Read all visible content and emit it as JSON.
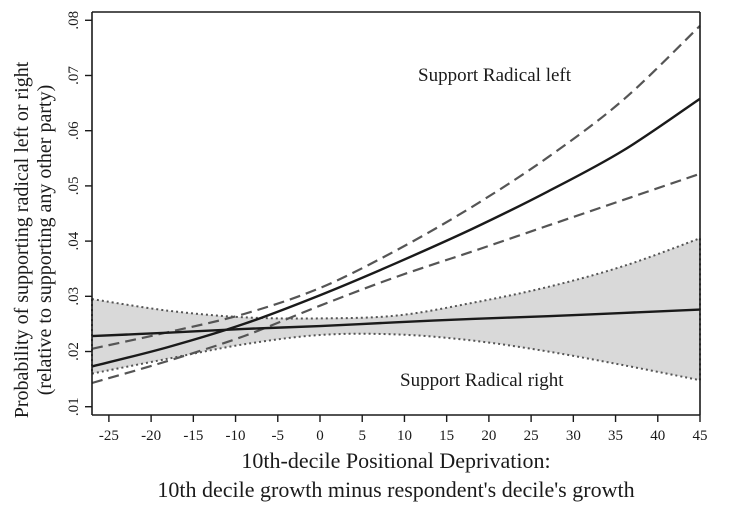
{
  "chart_data": {
    "type": "line",
    "xlabel_lines": [
      "10th-decile Positional Deprivation:",
      "10th decile growth minus respondent's decile's growth"
    ],
    "ylabel_lines": [
      "Probability of supporting radical left or right",
      "(relative to supporting any other party)"
    ],
    "xlim": [
      -27,
      45
    ],
    "ylim": [
      0.0085,
      0.0815
    ],
    "xticks": [
      -25,
      -20,
      -15,
      -10,
      -5,
      0,
      5,
      10,
      15,
      20,
      25,
      30,
      35,
      40,
      45
    ],
    "xtick_labels": [
      "-25",
      "-20",
      "-15",
      "-10",
      "-5",
      "0",
      "5",
      "10",
      "15",
      "20",
      "25",
      "30",
      "35",
      "40",
      "45"
    ],
    "yticks": [
      0.01,
      0.02,
      0.03,
      0.04,
      0.05,
      0.06,
      0.07,
      0.08
    ],
    "ytick_labels": [
      ".01",
      ".02",
      ".03",
      ".04",
      ".05",
      ".06",
      ".07",
      ".08"
    ],
    "grid": false,
    "x": [
      -27,
      -18,
      -9,
      0,
      9,
      18,
      27,
      36,
      45
    ],
    "series": [
      {
        "name": "Support Radical left",
        "style": "solid",
        "values": [
          0.0173,
          0.0208,
          0.025,
          0.0302,
          0.036,
          0.0422,
          0.049,
          0.0565,
          0.0658
        ]
      },
      {
        "name": "Support Radical left upper bound",
        "style": "dashed",
        "values": [
          0.0205,
          0.0235,
          0.0268,
          0.0315,
          0.0383,
          0.0462,
          0.0552,
          0.0657,
          0.079
        ]
      },
      {
        "name": "Support Radical left lower bound",
        "style": "dashed",
        "values": [
          0.0143,
          0.0183,
          0.0228,
          0.0283,
          0.0335,
          0.0381,
          0.0428,
          0.0475,
          0.0522
        ]
      },
      {
        "name": "Support Radical right",
        "style": "solid",
        "values": [
          0.0228,
          0.0234,
          0.0241,
          0.0246,
          0.0253,
          0.0259,
          0.0264,
          0.027,
          0.0276
        ]
      },
      {
        "name": "Support Radical right upper bound",
        "style": "dotted-band",
        "values": [
          0.0295,
          0.0274,
          0.0262,
          0.026,
          0.0265,
          0.0288,
          0.0317,
          0.0355,
          0.0405
        ]
      },
      {
        "name": "Support Radical right lower bound",
        "style": "dotted-band",
        "values": [
          0.016,
          0.0187,
          0.0213,
          0.023,
          0.0231,
          0.022,
          0.02,
          0.0175,
          0.0148
        ]
      }
    ],
    "annotations": [
      {
        "text": "Support Radical left"
      },
      {
        "text": "Support Radical right"
      }
    ],
    "colors": {
      "line": "#1a1a1a",
      "dashed": "#555555",
      "band_fill": "#d9d9d9",
      "band_edge": "#555555"
    }
  }
}
